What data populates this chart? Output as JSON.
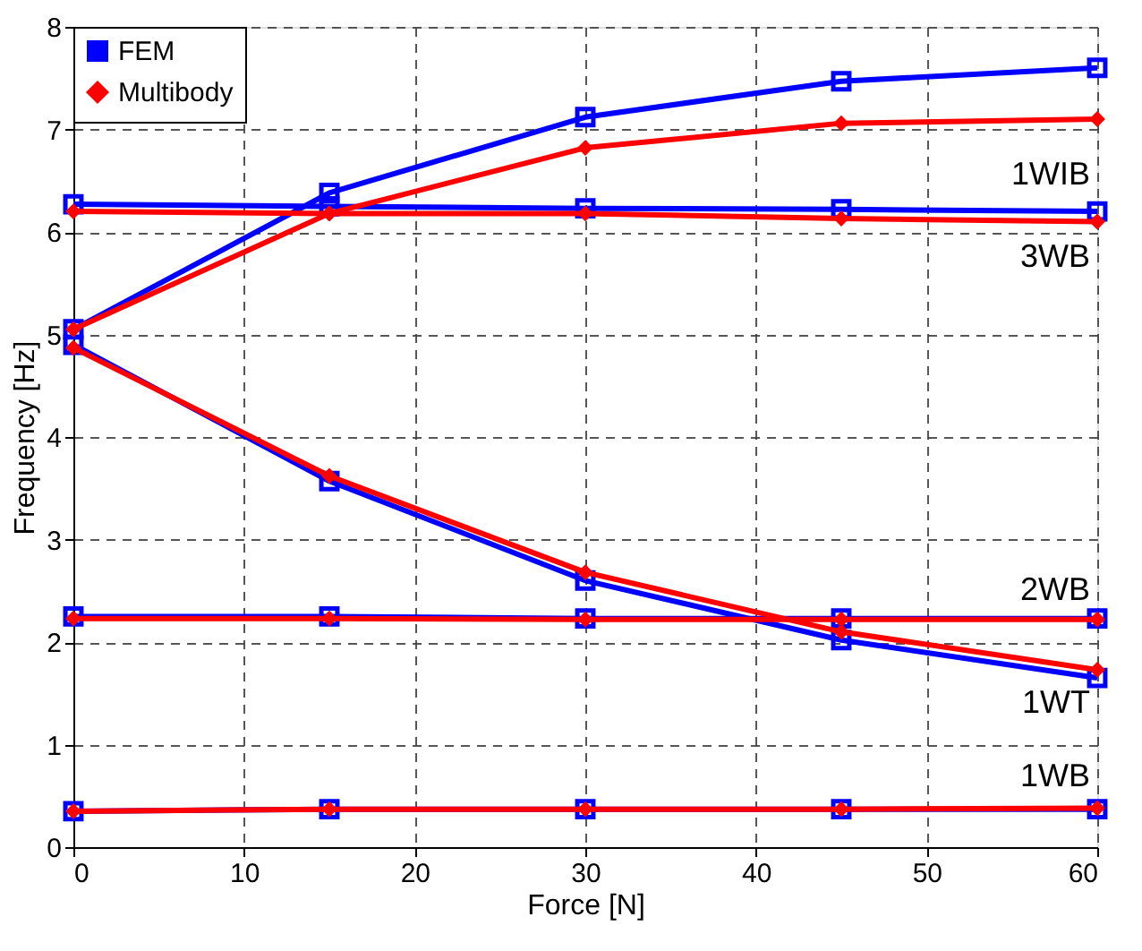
{
  "chart_data": {
    "type": "line",
    "xlabel": "Force [N]",
    "ylabel": "Frequency [Hz]",
    "xlim": [
      0,
      60
    ],
    "xticks": [
      0,
      10,
      20,
      30,
      40,
      50,
      60
    ],
    "ylim": [
      0,
      8
    ],
    "yticks": [
      0,
      1,
      2,
      3,
      4,
      5,
      6,
      7,
      8
    ],
    "grid": true,
    "legend": "top left",
    "line_style": "solid",
    "x": [
      0,
      15,
      30,
      45,
      60
    ],
    "series": [
      {
        "name": "FEM",
        "color": "#0000ff",
        "marker": "square",
        "values": [
          5.05,
          6.38,
          7.12,
          7.47,
          7.6
        ]
      },
      {
        "color": "#0000ff",
        "marker": "square",
        "values": [
          6.27,
          6.25,
          6.23,
          6.22,
          6.2
        ]
      },
      {
        "color": "#0000ff",
        "marker": "square",
        "values": [
          4.9,
          3.57,
          2.6,
          2.02,
          1.65
        ]
      },
      {
        "color": "#0000ff",
        "marker": "square",
        "values": [
          2.25,
          2.25,
          2.23,
          2.23,
          2.23
        ]
      },
      {
        "color": "#0000ff",
        "marker": "square",
        "values": [
          0.35,
          0.37,
          0.37,
          0.37,
          0.37
        ]
      },
      {
        "name": "Multibody",
        "color": "#ff0000",
        "marker": "diamond",
        "values": [
          5.05,
          6.18,
          6.82,
          7.06,
          7.1
        ]
      },
      {
        "color": "#ff0000",
        "marker": "diamond",
        "values": [
          6.2,
          6.18,
          6.18,
          6.13,
          6.1
        ]
      },
      {
        "color": "#ff0000",
        "marker": "diamond",
        "values": [
          4.87,
          3.62,
          2.68,
          2.1,
          1.73
        ]
      },
      {
        "color": "#ff0000",
        "marker": "diamond",
        "values": [
          2.23,
          2.23,
          2.22,
          2.22,
          2.22
        ]
      },
      {
        "color": "#ff0000",
        "marker": "diamond",
        "values": [
          0.35,
          0.37,
          0.37,
          0.37,
          0.38
        ]
      }
    ],
    "annotations": [
      "1WIB",
      "3WB",
      "2WB",
      "1WT",
      "1WB"
    ]
  }
}
